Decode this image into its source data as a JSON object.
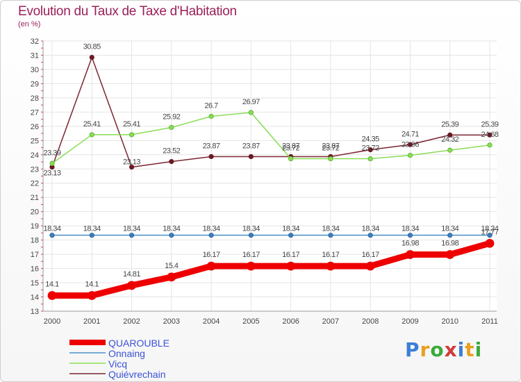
{
  "header": {
    "title": "Evolution du Taux de Taxe d'Habitation",
    "unit": "(en %)"
  },
  "logo": {
    "letters": [
      "P",
      "r",
      "o",
      "x",
      "i",
      "t",
      "i"
    ],
    "colors": [
      "#3b7fd6",
      "#e8a020",
      "#3caa3c",
      "#d13b3b",
      "#3b7fd6",
      "#e8a020",
      "#3caa3c"
    ]
  },
  "chart_data": {
    "type": "line",
    "x": [
      "2000",
      "2001",
      "2002",
      "2003",
      "2004",
      "2005",
      "2006",
      "2007",
      "2008",
      "2009",
      "2010",
      "2011"
    ],
    "ylim": [
      13,
      32
    ],
    "yticks": [
      "13",
      "14",
      "15",
      "16",
      "17",
      "18",
      "19",
      "20",
      "21",
      "22",
      "23",
      "24",
      "25",
      "26",
      "27",
      "28",
      "29",
      "30",
      "31",
      "32"
    ],
    "series": [
      {
        "name": "QUAROUBLE",
        "color": "#ee0000",
        "width": 9,
        "values": [
          14.1,
          14.1,
          14.81,
          15.4,
          16.17,
          16.17,
          16.17,
          16.17,
          16.17,
          16.98,
          16.98,
          17.77
        ],
        "labels": [
          "14.1",
          "14.1",
          "14.81",
          "15.4",
          "16.17",
          "16.17",
          "16.17",
          "16.17",
          "16.17",
          "16.98",
          "16.98",
          "17.77"
        ]
      },
      {
        "name": "Onnaing",
        "color": "#4a8fc8",
        "width": 1.5,
        "values": [
          18.34,
          18.34,
          18.34,
          18.34,
          18.34,
          18.34,
          18.34,
          18.34,
          18.34,
          18.34,
          18.34,
          18.34
        ],
        "labels": [
          "18.34",
          "18.34",
          "18.34",
          "18.34",
          "18.34",
          "18.34",
          "18.34",
          "18.34",
          "18.34",
          "18.34",
          "18.34",
          "18.34"
        ]
      },
      {
        "name": "Vicq",
        "color": "#88dd55",
        "width": 1.5,
        "values": [
          23.39,
          25.41,
          25.41,
          25.92,
          26.7,
          26.97,
          23.72,
          23.72,
          23.72,
          23.96,
          24.32,
          24.68
        ],
        "labels": [
          "23.39",
          "25.41",
          "25.41",
          "25.92",
          "26.7",
          "26.97",
          "23.72",
          "23.72",
          "23.72",
          "23.96",
          "24.32",
          "24.68"
        ]
      },
      {
        "name": "Quiévrechain",
        "color": "#7a2530",
        "width": 1.5,
        "values": [
          23.13,
          30.85,
          23.13,
          23.52,
          23.87,
          23.87,
          23.87,
          23.87,
          24.35,
          24.71,
          25.39,
          25.39
        ],
        "labels": [
          "23.13",
          "30.85",
          "23.13",
          "23.52",
          "23.87",
          "23.87",
          "23.87",
          "23.87",
          "24.35",
          "24.71",
          "25.39",
          "25.39"
        ]
      }
    ],
    "grid": true,
    "legend": "bottom-left"
  }
}
